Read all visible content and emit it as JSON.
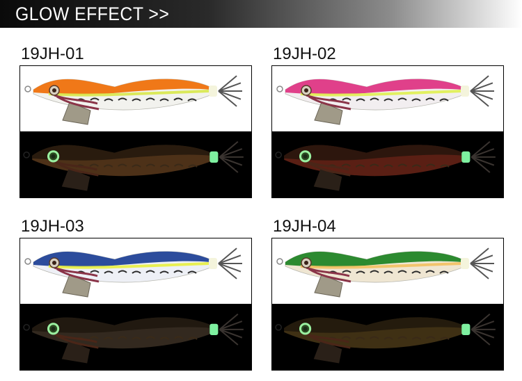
{
  "banner": {
    "title": "GLOW EFFECT >>"
  },
  "products": [
    {
      "code": "19JH-01",
      "back_color": "#f07818",
      "belly_color": "#f2f2ee",
      "stripe_color": "#d8e84a",
      "night_tint": "#5a3a1c"
    },
    {
      "code": "19JH-02",
      "back_color": "#e0408a",
      "belly_color": "#f2eef0",
      "stripe_color": "#e0f050",
      "night_tint": "#6a2418"
    },
    {
      "code": "19JH-03",
      "back_color": "#2c4c9c",
      "belly_color": "#eef0f6",
      "stripe_color": "#e8f040",
      "night_tint": "#3c3024"
    },
    {
      "code": "19JH-04",
      "back_color": "#2c8a30",
      "belly_color": "#efe6d2",
      "stripe_color": "#f2c060",
      "night_tint": "#4a3818"
    }
  ]
}
